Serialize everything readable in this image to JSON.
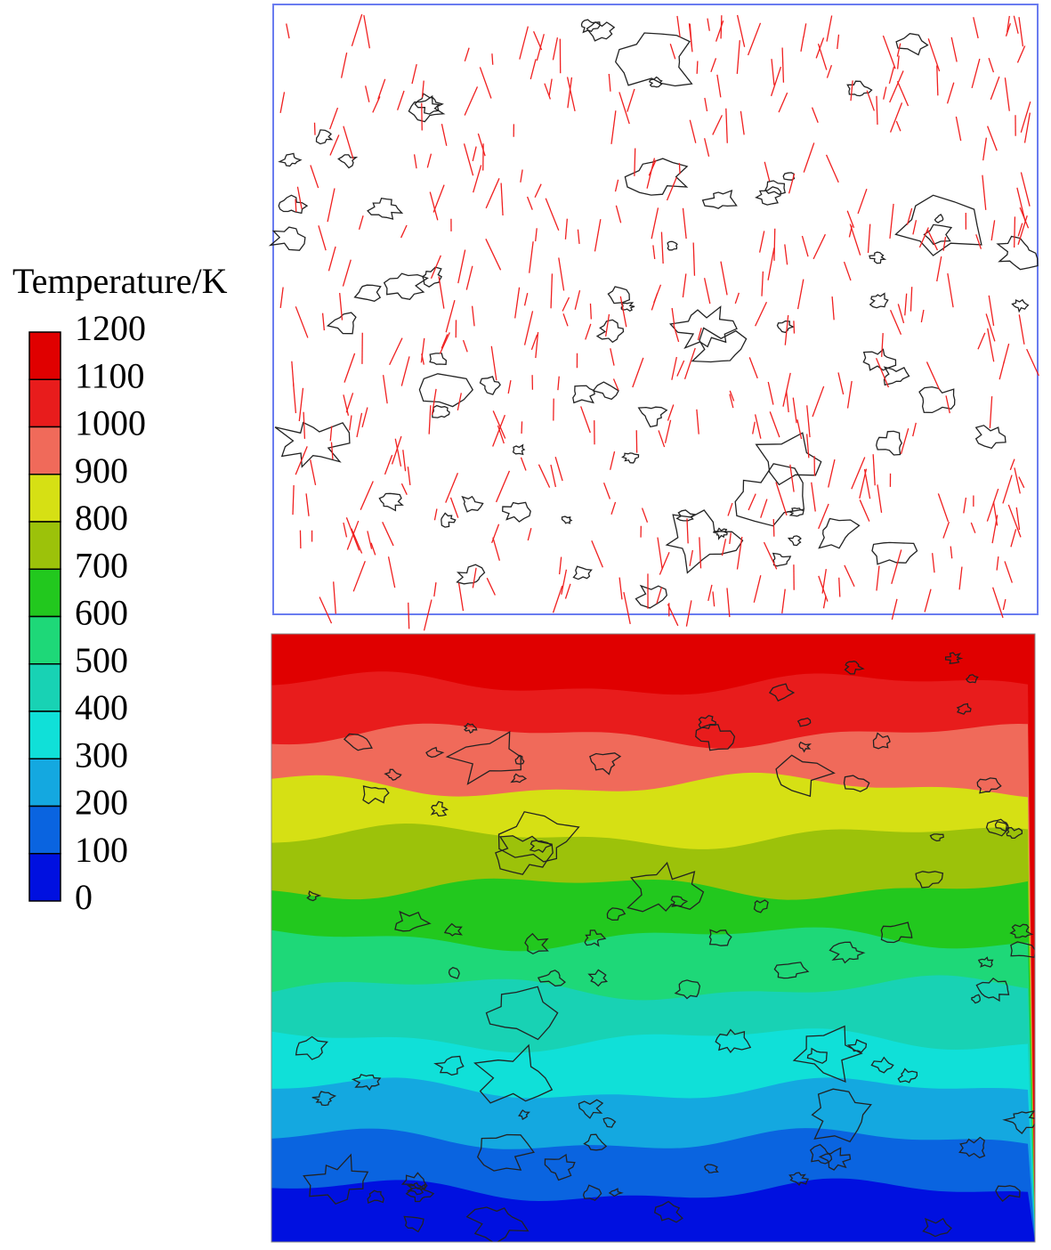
{
  "colorbar": {
    "title": "Temperature/K",
    "ticks": [
      1200,
      1100,
      1000,
      900,
      800,
      700,
      600,
      500,
      400,
      300,
      200,
      100,
      0
    ],
    "colors": [
      "#e00000",
      "#e81c1c",
      "#f06a5a",
      "#d6e014",
      "#9cc20a",
      "#22c81e",
      "#1ed878",
      "#18d2b4",
      "#10e0d8",
      "#14a8e0",
      "#0a64e0",
      "#0010e0"
    ]
  }
}
